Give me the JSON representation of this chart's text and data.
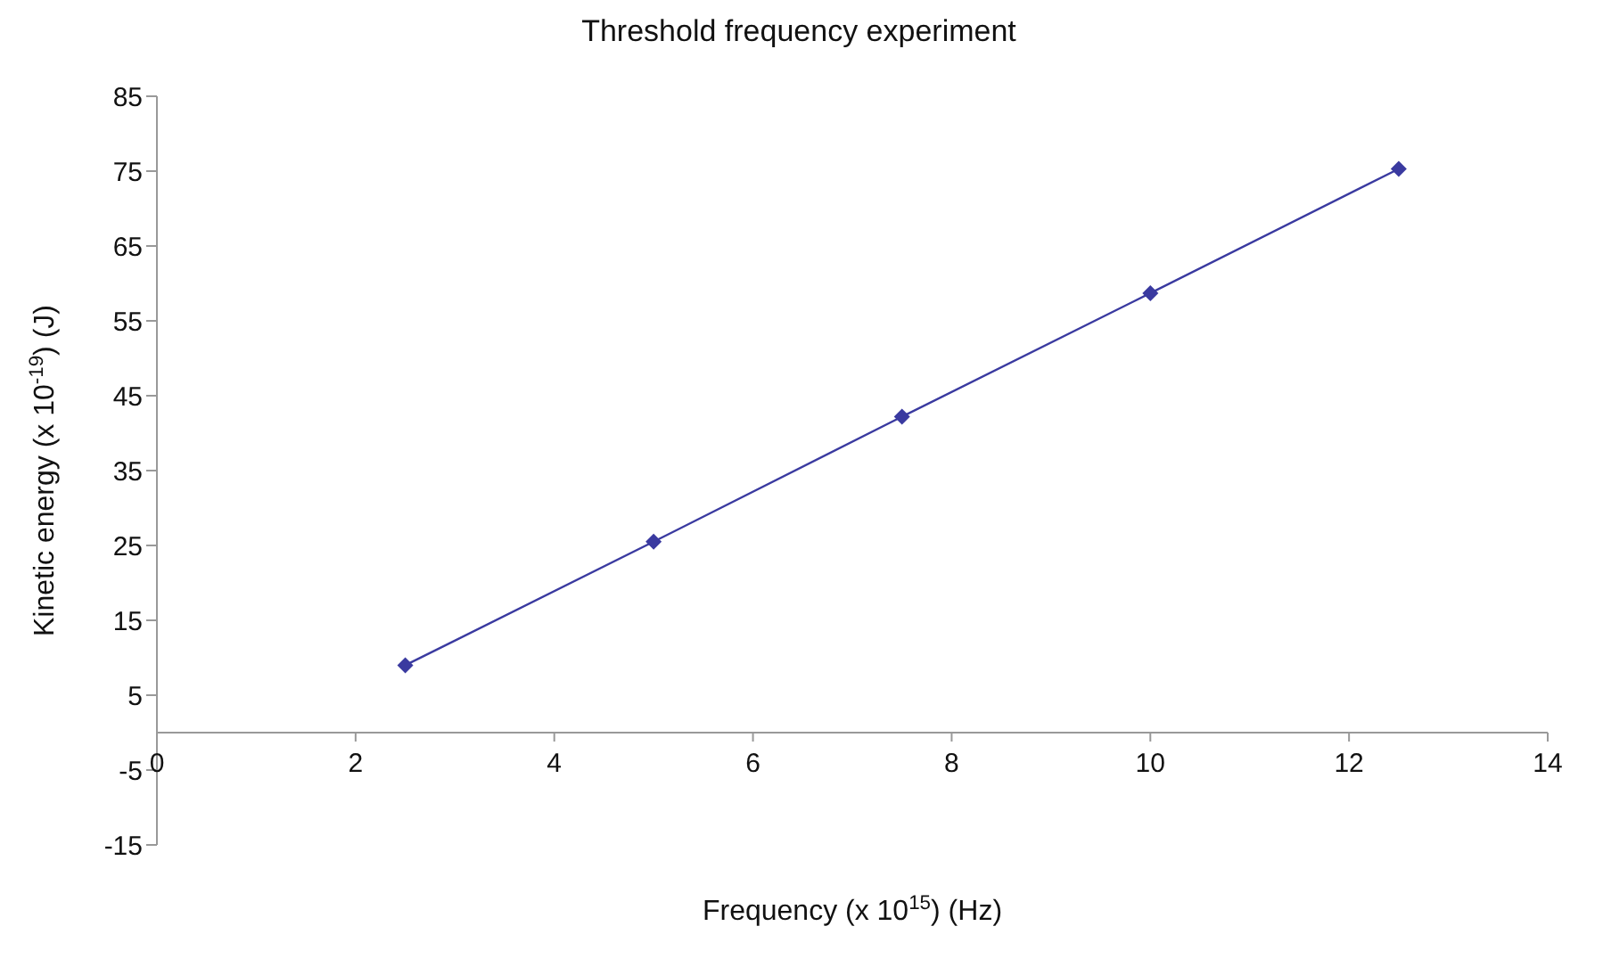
{
  "chart_data": {
    "type": "line",
    "title": "Threshold frequency experiment",
    "xlabel": "Frequency (x 10$^{15}$) (Hz)",
    "ylabel": "Kinetic energy (x 10$^{-19}$) (J)",
    "x": [
      2.5,
      5,
      7.5,
      10,
      12.5
    ],
    "series": [
      {
        "color": "#3a3aa0",
        "values": [
          9,
          25.5,
          42.2,
          58.7,
          75.3
        ]
      }
    ],
    "xlim": [
      0,
      14
    ],
    "xticks": [
      0,
      2,
      4,
      6,
      8,
      10,
      12,
      14
    ],
    "ylim": [
      -15,
      85
    ],
    "yticks": [
      -15,
      -5,
      5,
      15,
      25,
      35,
      45,
      55,
      65,
      75,
      85
    ],
    "grid": false,
    "legend": false,
    "marker": "diamond",
    "line_style": "solid"
  }
}
